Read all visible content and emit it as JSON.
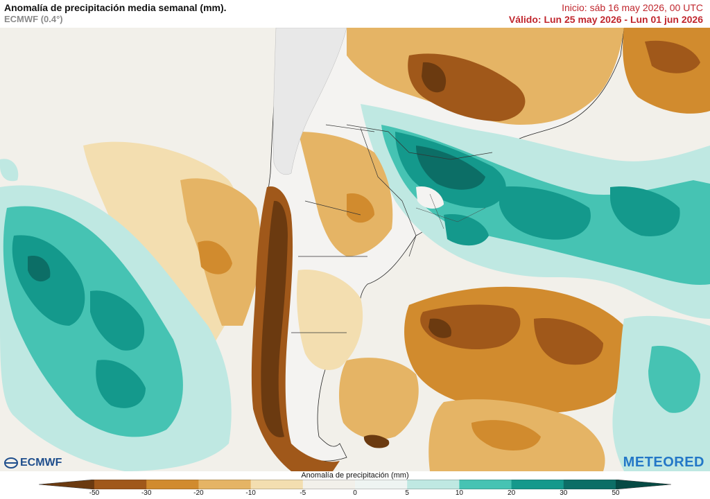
{
  "header": {
    "title": "Anomalía de precipitación media semanal (mm).",
    "model": "ECMWF (0.4°)",
    "init": "Inicio:  sáb 16 may 2026, 00 UTC",
    "valid": "Válido: Lun 25 may 2026 - Lun 01 jun 2026"
  },
  "logos": {
    "left": "ECMWF",
    "right": "METEORED"
  },
  "colorbar": {
    "title": "Anomalía de precipitación (mm)",
    "ticks": [
      "-50",
      "-30",
      "-20",
      "-10",
      "-5",
      "0",
      "5",
      "10",
      "20",
      "30",
      "50"
    ],
    "colors": [
      "#6b3a10",
      "#a0581a",
      "#d18b2e",
      "#e5b465",
      "#f3deb0",
      "#f2f0ea",
      "#eef4f2",
      "#bfe8e2",
      "#46c3b3",
      "#14998c",
      "#0c6e66",
      "#064a44"
    ]
  },
  "map_colors": {
    "ocean_neutral": "#f2f0ea",
    "land_neutral": "#f4f3f1",
    "relief": "#e8e8e8"
  }
}
